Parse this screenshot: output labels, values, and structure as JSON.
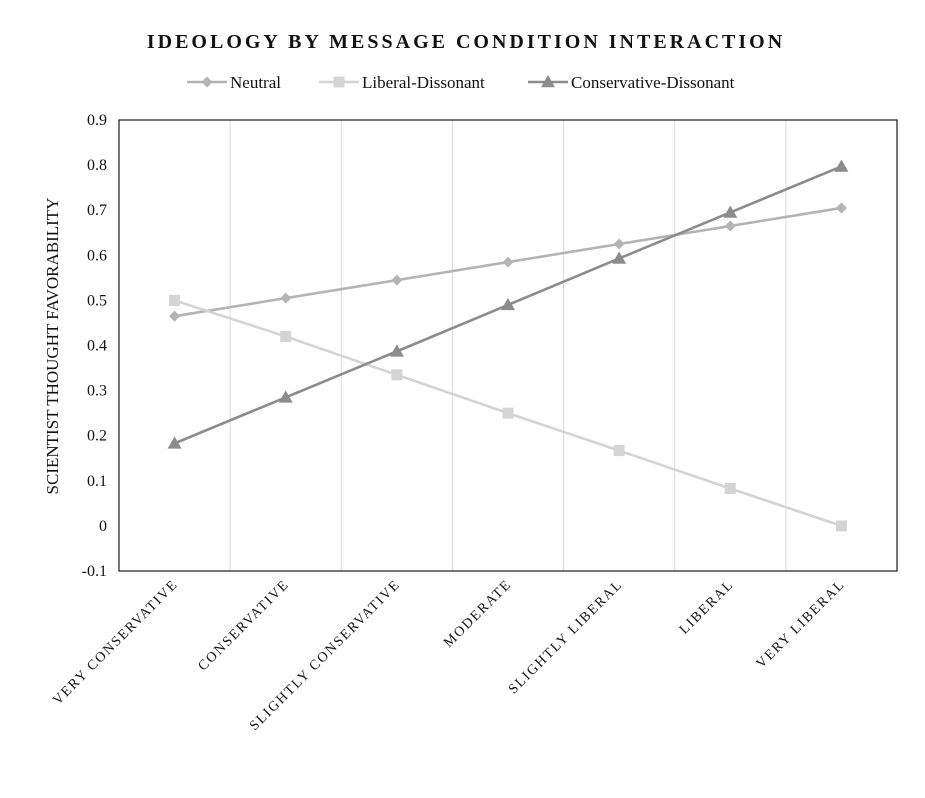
{
  "chart_data": {
    "type": "line",
    "title": "IDEOLOGY BY MESSAGE CONDITION INTERACTION",
    "xlabel": "",
    "ylabel": "SCIENTIST THOUGHT FAVORABILITY",
    "ylim": [
      -0.1,
      0.9
    ],
    "yticks": [
      "-0.1",
      "0",
      "0.1",
      "0.2",
      "0.3",
      "0.4",
      "0.5",
      "0.6",
      "0.7",
      "0.8",
      "0.9"
    ],
    "categories": [
      "VERY CONSERVATIVE",
      "CONSERVATIVE",
      "SLIGHTLY CONSERVATIVE",
      "MODERATE",
      "SLIGHTLY LIBERAL",
      "LIBERAL",
      "VERY LIBERAL"
    ],
    "grid": "vertical",
    "legend_position": "top",
    "series": [
      {
        "name": "Neutral",
        "marker": "diamond",
        "color": "#b4b4b4",
        "values": [
          0.465,
          0.505,
          0.545,
          0.585,
          0.625,
          0.665,
          0.705
        ]
      },
      {
        "name": "Liberal-Dissonant",
        "marker": "square",
        "color": "#d4d4d4",
        "values": [
          0.5,
          0.42,
          0.335,
          0.25,
          0.167,
          0.083,
          0.0
        ]
      },
      {
        "name": "Conservative-Dissonant",
        "marker": "triangle",
        "color": "#8c8c8c",
        "values": [
          0.183,
          0.285,
          0.387,
          0.49,
          0.593,
          0.695,
          0.797
        ]
      }
    ]
  }
}
